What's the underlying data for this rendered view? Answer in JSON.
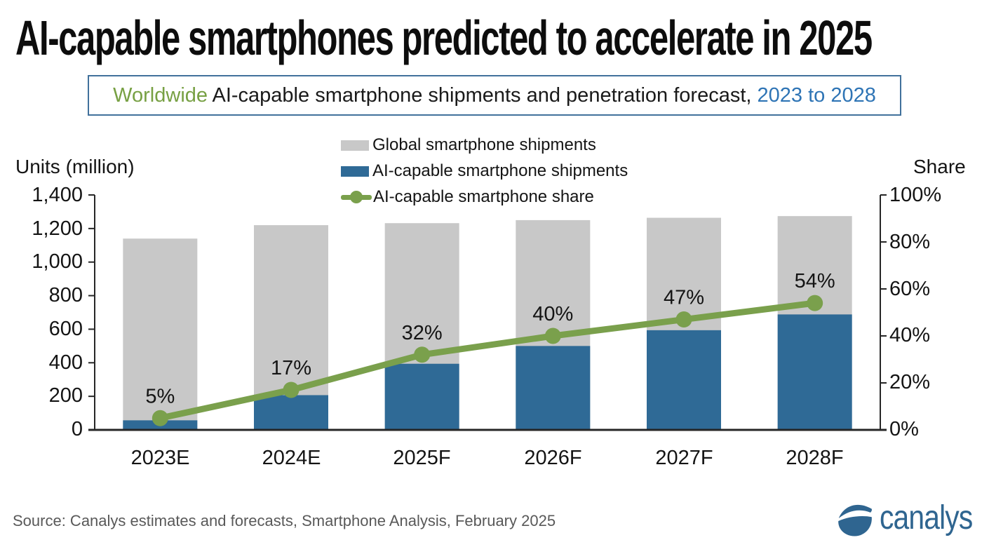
{
  "title": "AI-capable smartphones predicted to accelerate in 2025",
  "subtitle": {
    "prefix": "Worldwide",
    "middle": " AI-capable smartphone shipments and penetration forecast, ",
    "range": "2023 to 2028"
  },
  "legend": {
    "items": [
      {
        "label": "Global smartphone shipments",
        "marker": "bar",
        "color": "#c8c8c8"
      },
      {
        "label": "AI-capable smartphone shipments",
        "marker": "bar",
        "color": "#2f6a96"
      },
      {
        "label": "AI-capable smartphone share",
        "marker": "line",
        "color": "#7aa04c"
      }
    ]
  },
  "left_axis": {
    "title": "Units (million)",
    "ticks": [
      "1,400",
      "1,200",
      "1,000",
      "800",
      "600",
      "400",
      "200",
      "0"
    ]
  },
  "right_axis": {
    "title": "Share",
    "ticks": [
      "100%",
      "80%",
      "60%",
      "40%",
      "20%",
      "0%"
    ]
  },
  "chart_data": {
    "type": "bar+line",
    "categories": [
      "2023E",
      "2024E",
      "2025F",
      "2026F",
      "2027F",
      "2028F"
    ],
    "series": [
      {
        "name": "Global smartphone shipments",
        "type": "bar",
        "axis": "left",
        "color": "#c8c8c8",
        "values": [
          1140,
          1220,
          1232,
          1250,
          1264,
          1274
        ]
      },
      {
        "name": "AI-capable smartphone shipments",
        "type": "bar",
        "axis": "left",
        "color": "#2f6a96",
        "values": [
          57,
          207,
          394,
          500,
          594,
          688
        ]
      },
      {
        "name": "AI-capable smartphone share",
        "type": "line",
        "axis": "right",
        "color": "#7aa04c",
        "values": [
          5,
          17,
          32,
          40,
          47,
          54
        ],
        "labels": [
          "5%",
          "17%",
          "32%",
          "40%",
          "47%",
          "54%"
        ]
      }
    ],
    "ylim_left": [
      0,
      1400
    ],
    "ylim_right": [
      0,
      100
    ],
    "xlabel": "",
    "ylabel_left": "Units (million)",
    "ylabel_right": "Share",
    "grid": false,
    "legend_position": "top-center"
  },
  "footer": {
    "source": "Source: Canalys estimates and forecasts, Smartphone Analysis, February 2025",
    "logo_text": "canalys"
  },
  "colors": {
    "bar_global": "#c8c8c8",
    "bar_ai": "#2f6a96",
    "line_share": "#7aa04c",
    "axis": "#262626",
    "subtitle_border": "#41719c",
    "subtitle_green": "#77a043",
    "subtitle_blue": "#2e74b5",
    "source_text": "#595959",
    "logo_blue": "#2f6590"
  }
}
